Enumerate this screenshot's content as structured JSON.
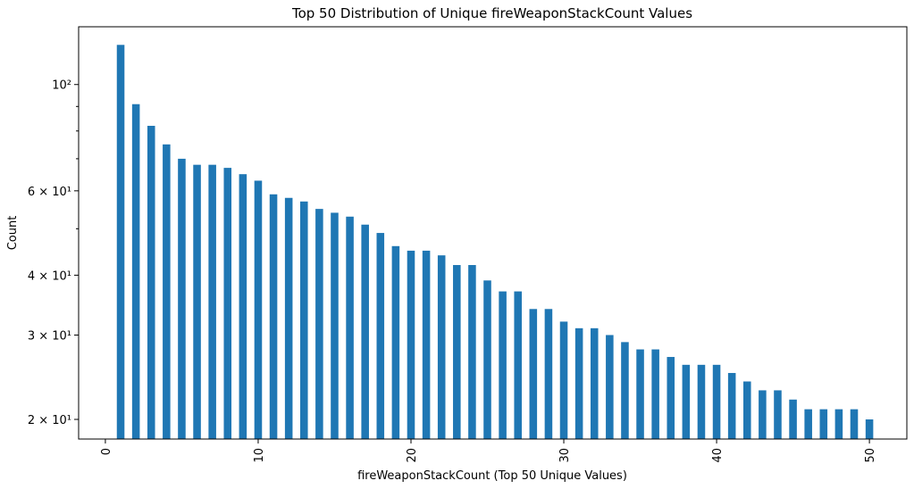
{
  "chart_data": {
    "type": "bar",
    "title": "Top 50 Distribution of Unique fireWeaponStackCount Values",
    "x_label": "fireWeaponStackCount (Top 50 Unique Values)",
    "y_label": "Count",
    "x": [
      1,
      2,
      3,
      4,
      5,
      6,
      7,
      8,
      9,
      10,
      11,
      12,
      13,
      14,
      15,
      16,
      17,
      18,
      19,
      20,
      21,
      22,
      23,
      24,
      25,
      26,
      27,
      28,
      29,
      30,
      31,
      32,
      33,
      34,
      35,
      36,
      37,
      38,
      39,
      40,
      41,
      42,
      43,
      44,
      45,
      46,
      47,
      48,
      49,
      50
    ],
    "values": [
      121,
      91,
      82,
      75,
      70,
      68,
      68,
      67,
      65,
      63,
      59,
      58,
      57,
      55,
      54,
      53,
      51,
      49,
      46,
      45,
      45,
      44,
      42,
      42,
      39,
      37,
      37,
      34,
      34,
      32,
      31,
      31,
      30,
      29,
      28,
      28,
      27,
      26,
      26,
      26,
      25,
      24,
      23,
      23,
      22,
      21,
      21,
      21,
      21,
      20
    ],
    "color": "#1f77b4",
    "bar_width": 0.5,
    "log_y": true,
    "xlim": [
      -1.75,
      52.45
    ],
    "xticks": [
      0,
      10,
      20,
      30,
      40,
      50
    ],
    "ylim": [
      18.2,
      132
    ],
    "yticks": [
      {
        "value": 20,
        "label": "2 × 10¹"
      },
      {
        "value": 30,
        "label": "3 × 10¹"
      },
      {
        "value": 40,
        "label": "4 × 10¹"
      },
      {
        "value": 60,
        "label": "6 × 10¹"
      },
      {
        "value": 100,
        "label": "10²"
      }
    ],
    "minor_yticks": [
      50,
      70,
      80,
      90
    ]
  }
}
